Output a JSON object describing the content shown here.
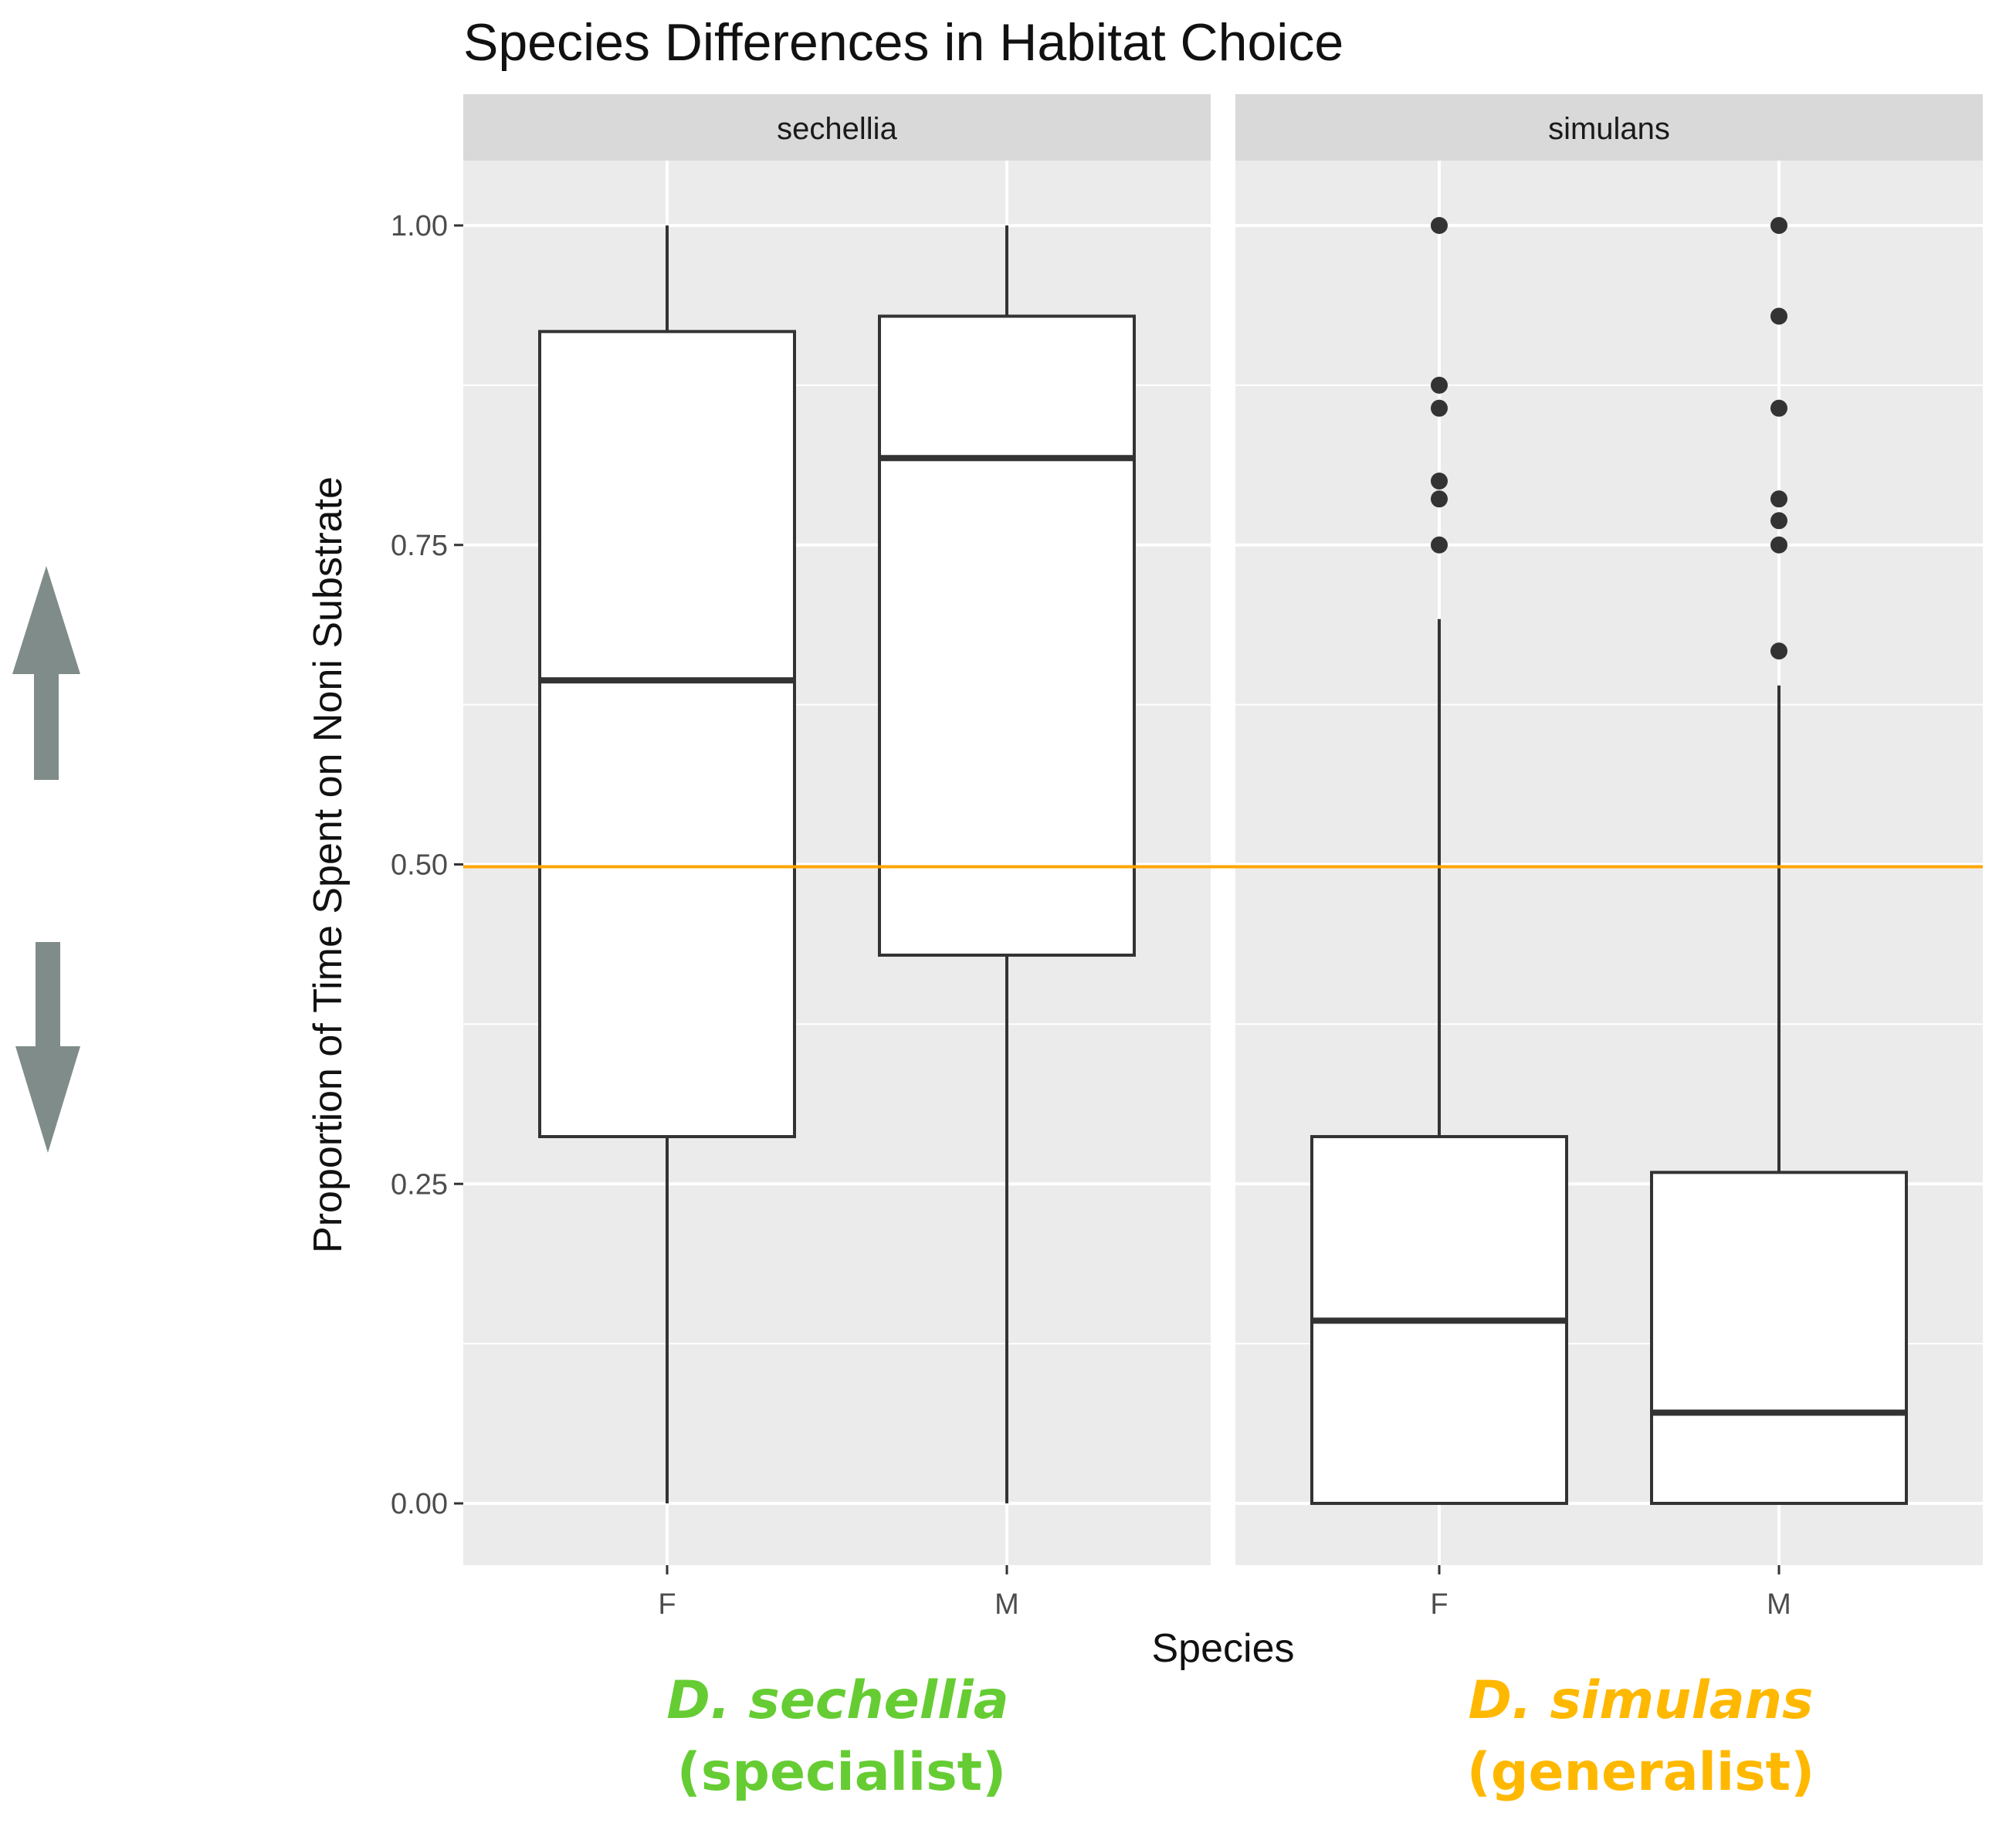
{
  "chart_data": {
    "type": "boxplot",
    "title": "Species Differences in Habitat Choice",
    "xlabel": "Species",
    "ylabel": "Proportion of Time Spent on Noni Substrate",
    "ylim": [
      -0.1,
      1.1
    ],
    "yticks": [
      {
        "value": 0.0,
        "label": "0.00"
      },
      {
        "value": 0.25,
        "label": "0.25"
      },
      {
        "value": 0.5,
        "label": "0.50"
      },
      {
        "value": 0.75,
        "label": "0.75"
      },
      {
        "value": 1.0,
        "label": "1.00"
      }
    ],
    "reference_line": {
      "value": 0.5,
      "color": "#FFA500"
    },
    "facets": [
      {
        "name": "sechellia",
        "caption_species": "D. sechellia",
        "caption_role": "(specialist)",
        "caption_color": "#66CC33",
        "groups": [
          {
            "category": "F",
            "lower_whisker": 0.0,
            "q1": 0.287,
            "median": 0.644,
            "q3": 0.917,
            "upper_whisker": 1.0,
            "outliers": []
          },
          {
            "category": "M",
            "lower_whisker": 0.0,
            "q1": 0.429,
            "median": 0.818,
            "q3": 0.929,
            "upper_whisker": 1.0,
            "outliers": []
          }
        ]
      },
      {
        "name": "simulans",
        "caption_species": "D. simulans",
        "caption_role": "(generalist)",
        "caption_color": "#FFB800",
        "groups": [
          {
            "category": "F",
            "lower_whisker": 0.0,
            "q1": 0.0,
            "median": 0.143,
            "q3": 0.287,
            "upper_whisker": 0.692,
            "outliers": [
              1.0,
              0.875,
              0.857,
              0.8,
              0.786,
              0.75
            ]
          },
          {
            "category": "M",
            "lower_whisker": 0.0,
            "q1": 0.0,
            "median": 0.071,
            "q3": 0.259,
            "upper_whisker": 0.64,
            "outliers": [
              1.0,
              0.929,
              0.857,
              0.786,
              0.769,
              0.75,
              0.667
            ]
          }
        ]
      }
    ]
  },
  "colors": {
    "panel_bg": "#EBEBEB",
    "strip_bg": "#D9D9D9",
    "grid": "#FFFFFF",
    "box_stroke": "#333333",
    "arrow": "#7F8C89"
  },
  "icons": {
    "up": "arrow-up-icon",
    "down": "arrow-down-icon"
  }
}
